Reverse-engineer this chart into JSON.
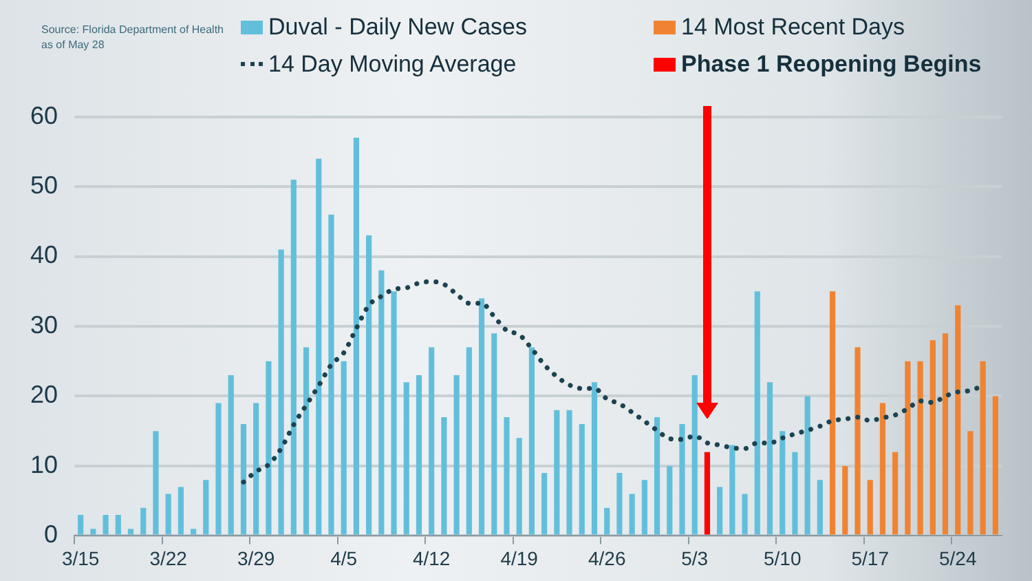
{
  "chart_data": {
    "type": "bar",
    "annotations": [
      "Source: Florida Department of Health",
      "as of May 28"
    ],
    "categories": [
      "3/15",
      null,
      null,
      null,
      null,
      null,
      null,
      "3/22",
      null,
      null,
      null,
      null,
      null,
      null,
      "3/29",
      null,
      null,
      null,
      null,
      null,
      null,
      "4/5",
      null,
      null,
      null,
      null,
      null,
      null,
      "4/12",
      null,
      null,
      null,
      null,
      null,
      null,
      "4/19",
      null,
      null,
      null,
      null,
      null,
      null,
      "4/26",
      null,
      null,
      null,
      null,
      null,
      null,
      "5/3",
      null,
      null,
      null,
      null,
      null,
      null,
      "5/10",
      null,
      null,
      null,
      null,
      null,
      null,
      "5/17",
      null,
      null,
      null,
      null,
      null,
      null,
      "5/24",
      null,
      null,
      null
    ],
    "series": [
      {
        "name": "Duval - Daily New Cases",
        "color": "#62bfdb",
        "values": [
          3,
          1,
          3,
          3,
          1,
          4,
          15,
          6,
          7,
          1,
          8,
          19,
          23,
          16,
          19,
          25,
          41,
          51,
          27,
          54,
          46,
          25,
          57,
          43,
          38,
          35,
          22,
          23,
          27,
          17,
          23,
          27,
          34,
          29,
          17,
          14,
          27,
          9,
          18,
          18,
          16,
          22,
          4,
          9,
          6,
          8,
          17,
          10,
          16,
          23,
          null,
          7,
          13,
          6,
          35,
          22,
          15,
          12,
          20,
          8,
          null,
          null,
          null,
          null,
          null,
          null,
          null,
          null,
          null,
          null,
          null,
          null,
          null,
          null
        ]
      },
      {
        "name": "14 Most Recent Days",
        "color": "#f08331",
        "values": [
          null,
          null,
          null,
          null,
          null,
          null,
          null,
          null,
          null,
          null,
          null,
          null,
          null,
          null,
          null,
          null,
          null,
          null,
          null,
          null,
          null,
          null,
          null,
          null,
          null,
          null,
          null,
          null,
          null,
          null,
          null,
          null,
          null,
          null,
          null,
          null,
          null,
          null,
          null,
          null,
          null,
          null,
          null,
          null,
          null,
          null,
          null,
          null,
          null,
          null,
          null,
          null,
          null,
          null,
          null,
          null,
          null,
          null,
          null,
          null,
          35,
          10,
          27,
          8,
          19,
          12,
          25,
          25,
          28,
          29,
          33,
          15,
          25,
          20
        ]
      },
      {
        "name": "14 Day Moving Average",
        "type": "line",
        "color": "#1d4350",
        "line_style": "dotted",
        "marker": "none",
        "values": [
          null,
          null,
          null,
          null,
          null,
          null,
          null,
          null,
          null,
          null,
          null,
          null,
          null,
          7.7,
          9.2,
          10.2,
          12.5,
          15.9,
          18.7,
          21.5,
          24.5,
          26.2,
          29.7,
          33,
          34.3,
          35.3,
          35.5,
          36.2,
          36.4,
          36,
          34.6,
          33.3,
          33.3,
          31.4,
          29.4,
          28.8,
          26.8,
          24.5,
          22.8,
          21.6,
          21.1,
          21.1,
          19.6,
          18.9,
          17.7,
          16.4,
          15.1,
          13.9,
          13.8,
          14.3,
          13.3,
          13,
          12.6,
          12.5,
          13.3,
          13.3,
          14,
          14.6,
          15.1,
          15.7,
          16.5,
          16.7,
          17,
          16.5,
          16.9,
          17.3,
          18.2,
          19.3,
          19.1,
          20,
          20.6,
          20.8,
          21.5,
          null
        ]
      },
      {
        "name": "Phase 1 Reopening Begins",
        "color": "#ff0000",
        "values": [
          null,
          null,
          null,
          null,
          null,
          null,
          null,
          null,
          null,
          null,
          null,
          null,
          null,
          null,
          null,
          null,
          null,
          null,
          null,
          null,
          null,
          null,
          null,
          null,
          null,
          null,
          null,
          null,
          null,
          null,
          null,
          null,
          null,
          null,
          null,
          null,
          null,
          null,
          null,
          null,
          null,
          null,
          null,
          null,
          null,
          null,
          null,
          null,
          null,
          null,
          12,
          null,
          null,
          null,
          null,
          null,
          null,
          null,
          null,
          null,
          null,
          null,
          null,
          null,
          null,
          null,
          null,
          null,
          null,
          null,
          null,
          null,
          null,
          null
        ]
      }
    ],
    "ylim": [
      0,
      60
    ],
    "yticks": [
      0,
      10,
      20,
      30,
      40,
      50,
      60
    ],
    "grid": "y",
    "legend": "top"
  }
}
